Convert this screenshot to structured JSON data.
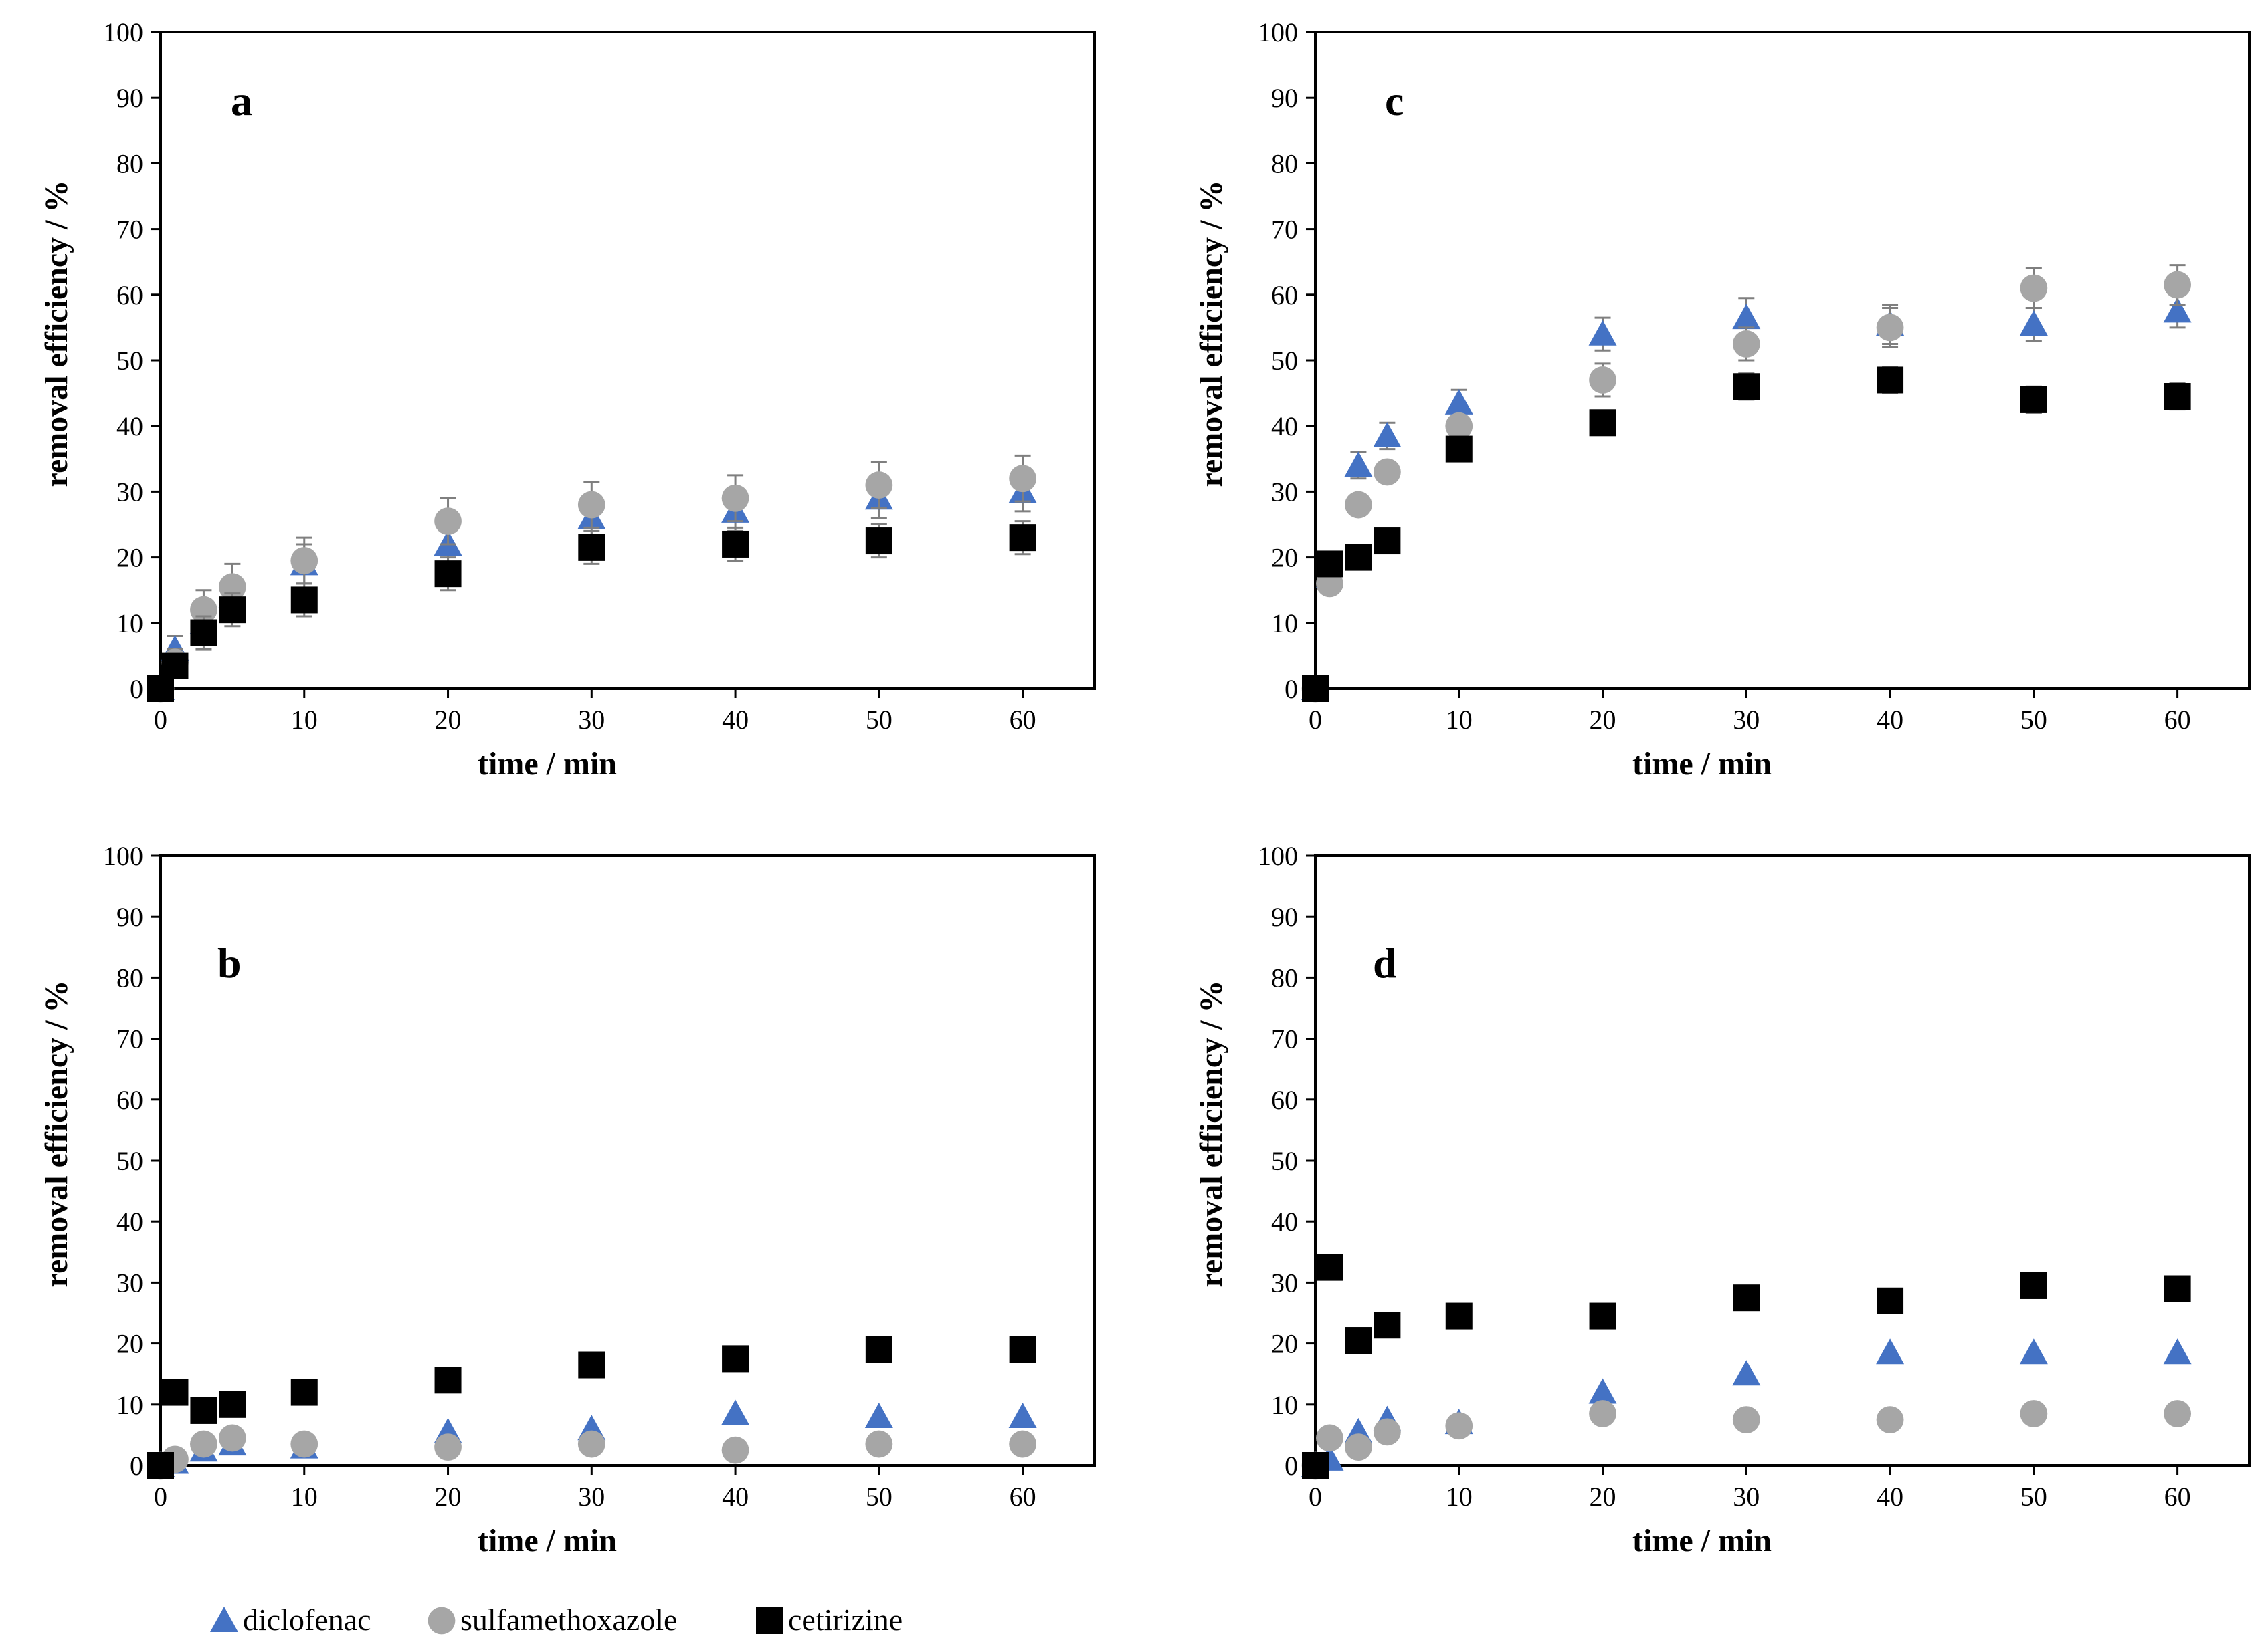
{
  "colors": {
    "diclofenac": "#4472c4",
    "sulfamethoxazole": "#a6a6a6",
    "cetirizine": "#000000",
    "error_bar": "#7f7f7f",
    "frame": "#000000"
  },
  "legend": {
    "placement": "bottom-left",
    "items": [
      {
        "series": "diclofenac",
        "label": "diclofenac",
        "marker": "triangle"
      },
      {
        "series": "sulfamethoxazole",
        "label": "sulfamethoxazole",
        "marker": "circle"
      },
      {
        "series": "cetirizine",
        "label": "cetirizine",
        "marker": "square"
      }
    ]
  },
  "chart_data": [
    {
      "panel": "a",
      "type": "scatter",
      "xlabel": "time / min",
      "ylabel": "removal efficiency / %",
      "xlim": [
        0,
        65
      ],
      "ylim": [
        0,
        100
      ],
      "xticks": [
        0,
        10,
        20,
        30,
        40,
        50,
        60
      ],
      "yticks": [
        0,
        10,
        20,
        30,
        40,
        50,
        60,
        70,
        80,
        90,
        100
      ],
      "grid": false,
      "x": [
        0,
        1,
        3,
        5,
        10,
        20,
        30,
        40,
        50,
        60
      ],
      "series": [
        {
          "name": "diclofenac",
          "values": [
            0,
            6,
            10,
            14,
            19,
            22,
            26,
            27,
            29,
            30
          ],
          "errors": [
            0,
            2,
            2.5,
            3,
            3,
            3,
            3,
            3,
            3,
            3
          ]
        },
        {
          "name": "sulfamethoxazole",
          "values": [
            0,
            4,
            12,
            15.5,
            19.5,
            25.5,
            28,
            29,
            31,
            32
          ],
          "errors": [
            0,
            2,
            3,
            3.5,
            3.5,
            3.5,
            3.5,
            3.5,
            3.5,
            3.5
          ]
        },
        {
          "name": "cetirizine",
          "values": [
            0,
            3.5,
            8.5,
            12,
            13.5,
            17.5,
            21.5,
            22,
            22.5,
            23
          ],
          "errors": [
            0,
            1.5,
            2.5,
            2.5,
            2.5,
            2.5,
            2.5,
            2.5,
            2.5,
            2.5
          ]
        }
      ]
    },
    {
      "panel": "c",
      "type": "scatter",
      "xlabel": "time / min",
      "ylabel": "removal efficiency / %",
      "xlim": [
        0,
        65
      ],
      "ylim": [
        0,
        100
      ],
      "xticks": [
        0,
        10,
        20,
        30,
        40,
        50,
        60
      ],
      "yticks": [
        0,
        10,
        20,
        30,
        40,
        50,
        60,
        70,
        80,
        90,
        100
      ],
      "grid": false,
      "x": [
        0,
        1,
        3,
        5,
        10,
        20,
        30,
        40,
        50,
        60
      ],
      "series": [
        {
          "name": "diclofenac",
          "values": [
            0,
            17,
            34,
            38.5,
            43.5,
            54,
            56.5,
            55.5,
            55.5,
            57.5
          ],
          "errors": [
            0,
            1.5,
            2,
            2,
            2,
            2.5,
            3,
            3,
            2.5,
            2.5
          ]
        },
        {
          "name": "sulfamethoxazole",
          "values": [
            0,
            16,
            28,
            33,
            40,
            47,
            52.5,
            55,
            61,
            61.5
          ],
          "errors": [
            0,
            1.5,
            1.5,
            1.5,
            1.5,
            2.5,
            2.5,
            3,
            3,
            3
          ]
        },
        {
          "name": "cetirizine",
          "values": [
            0,
            19,
            20,
            22.5,
            36.5,
            40.5,
            46,
            47,
            44,
            44.5
          ],
          "errors": [
            0,
            1.5,
            1.5,
            1.5,
            1.5,
            1.5,
            2,
            2,
            2,
            2
          ]
        }
      ]
    },
    {
      "panel": "b",
      "type": "scatter",
      "xlabel": "time / min",
      "ylabel": "removal efficiency / %",
      "xlim": [
        0,
        65
      ],
      "ylim": [
        0,
        100
      ],
      "xticks": [
        0,
        10,
        20,
        30,
        40,
        50,
        60
      ],
      "yticks": [
        0,
        10,
        20,
        30,
        40,
        50,
        60,
        70,
        80,
        90,
        100
      ],
      "grid": false,
      "x": [
        0,
        1,
        3,
        5,
        10,
        20,
        30,
        40,
        50,
        60
      ],
      "series": [
        {
          "name": "diclofenac",
          "values": [
            0,
            0.5,
            2.5,
            3.5,
            3,
            5.5,
            6,
            8.5,
            8,
            8
          ],
          "errors": [
            0,
            0,
            0,
            0,
            0,
            0,
            0,
            0,
            0,
            0
          ]
        },
        {
          "name": "sulfamethoxazole",
          "values": [
            0,
            1,
            3.5,
            4.5,
            3.5,
            3,
            3.5,
            2.5,
            3.5,
            3.5
          ],
          "errors": [
            0,
            0,
            0,
            0,
            0,
            0,
            0,
            0,
            0,
            0
          ]
        },
        {
          "name": "cetirizine",
          "values": [
            0,
            12,
            9,
            10,
            12,
            14,
            16.5,
            17.5,
            19,
            19
          ],
          "errors": [
            0,
            0,
            0,
            0,
            0,
            0,
            0,
            0,
            0,
            0
          ]
        }
      ]
    },
    {
      "panel": "d",
      "type": "scatter",
      "xlabel": "time / min",
      "ylabel": "removal efficiency / %",
      "xlim": [
        0,
        65
      ],
      "ylim": [
        0,
        100
      ],
      "xticks": [
        0,
        10,
        20,
        30,
        40,
        50,
        60
      ],
      "yticks": [
        0,
        10,
        20,
        30,
        40,
        50,
        60,
        70,
        80,
        90,
        100
      ],
      "grid": false,
      "x": [
        0,
        1,
        3,
        5,
        10,
        20,
        30,
        40,
        50,
        60
      ],
      "series": [
        {
          "name": "diclofenac",
          "values": [
            0,
            1,
            5.5,
            7.5,
            7,
            12,
            15,
            18.5,
            18.5,
            18.5
          ],
          "errors": [
            0,
            0,
            0,
            0,
            0,
            0,
            0,
            0,
            0,
            0
          ]
        },
        {
          "name": "sulfamethoxazole",
          "values": [
            0,
            4.5,
            3,
            5.5,
            6.5,
            8.5,
            7.5,
            7.5,
            8.5,
            8.5
          ],
          "errors": [
            0,
            0,
            0,
            0,
            0,
            0,
            0,
            0,
            0,
            0
          ]
        },
        {
          "name": "cetirizine",
          "values": [
            0,
            32.5,
            20.5,
            23,
            24.5,
            24.5,
            27.5,
            27,
            29.5,
            29
          ],
          "errors": [
            0,
            0,
            0,
            0,
            0,
            0,
            0,
            0,
            0,
            0
          ]
        }
      ]
    }
  ]
}
